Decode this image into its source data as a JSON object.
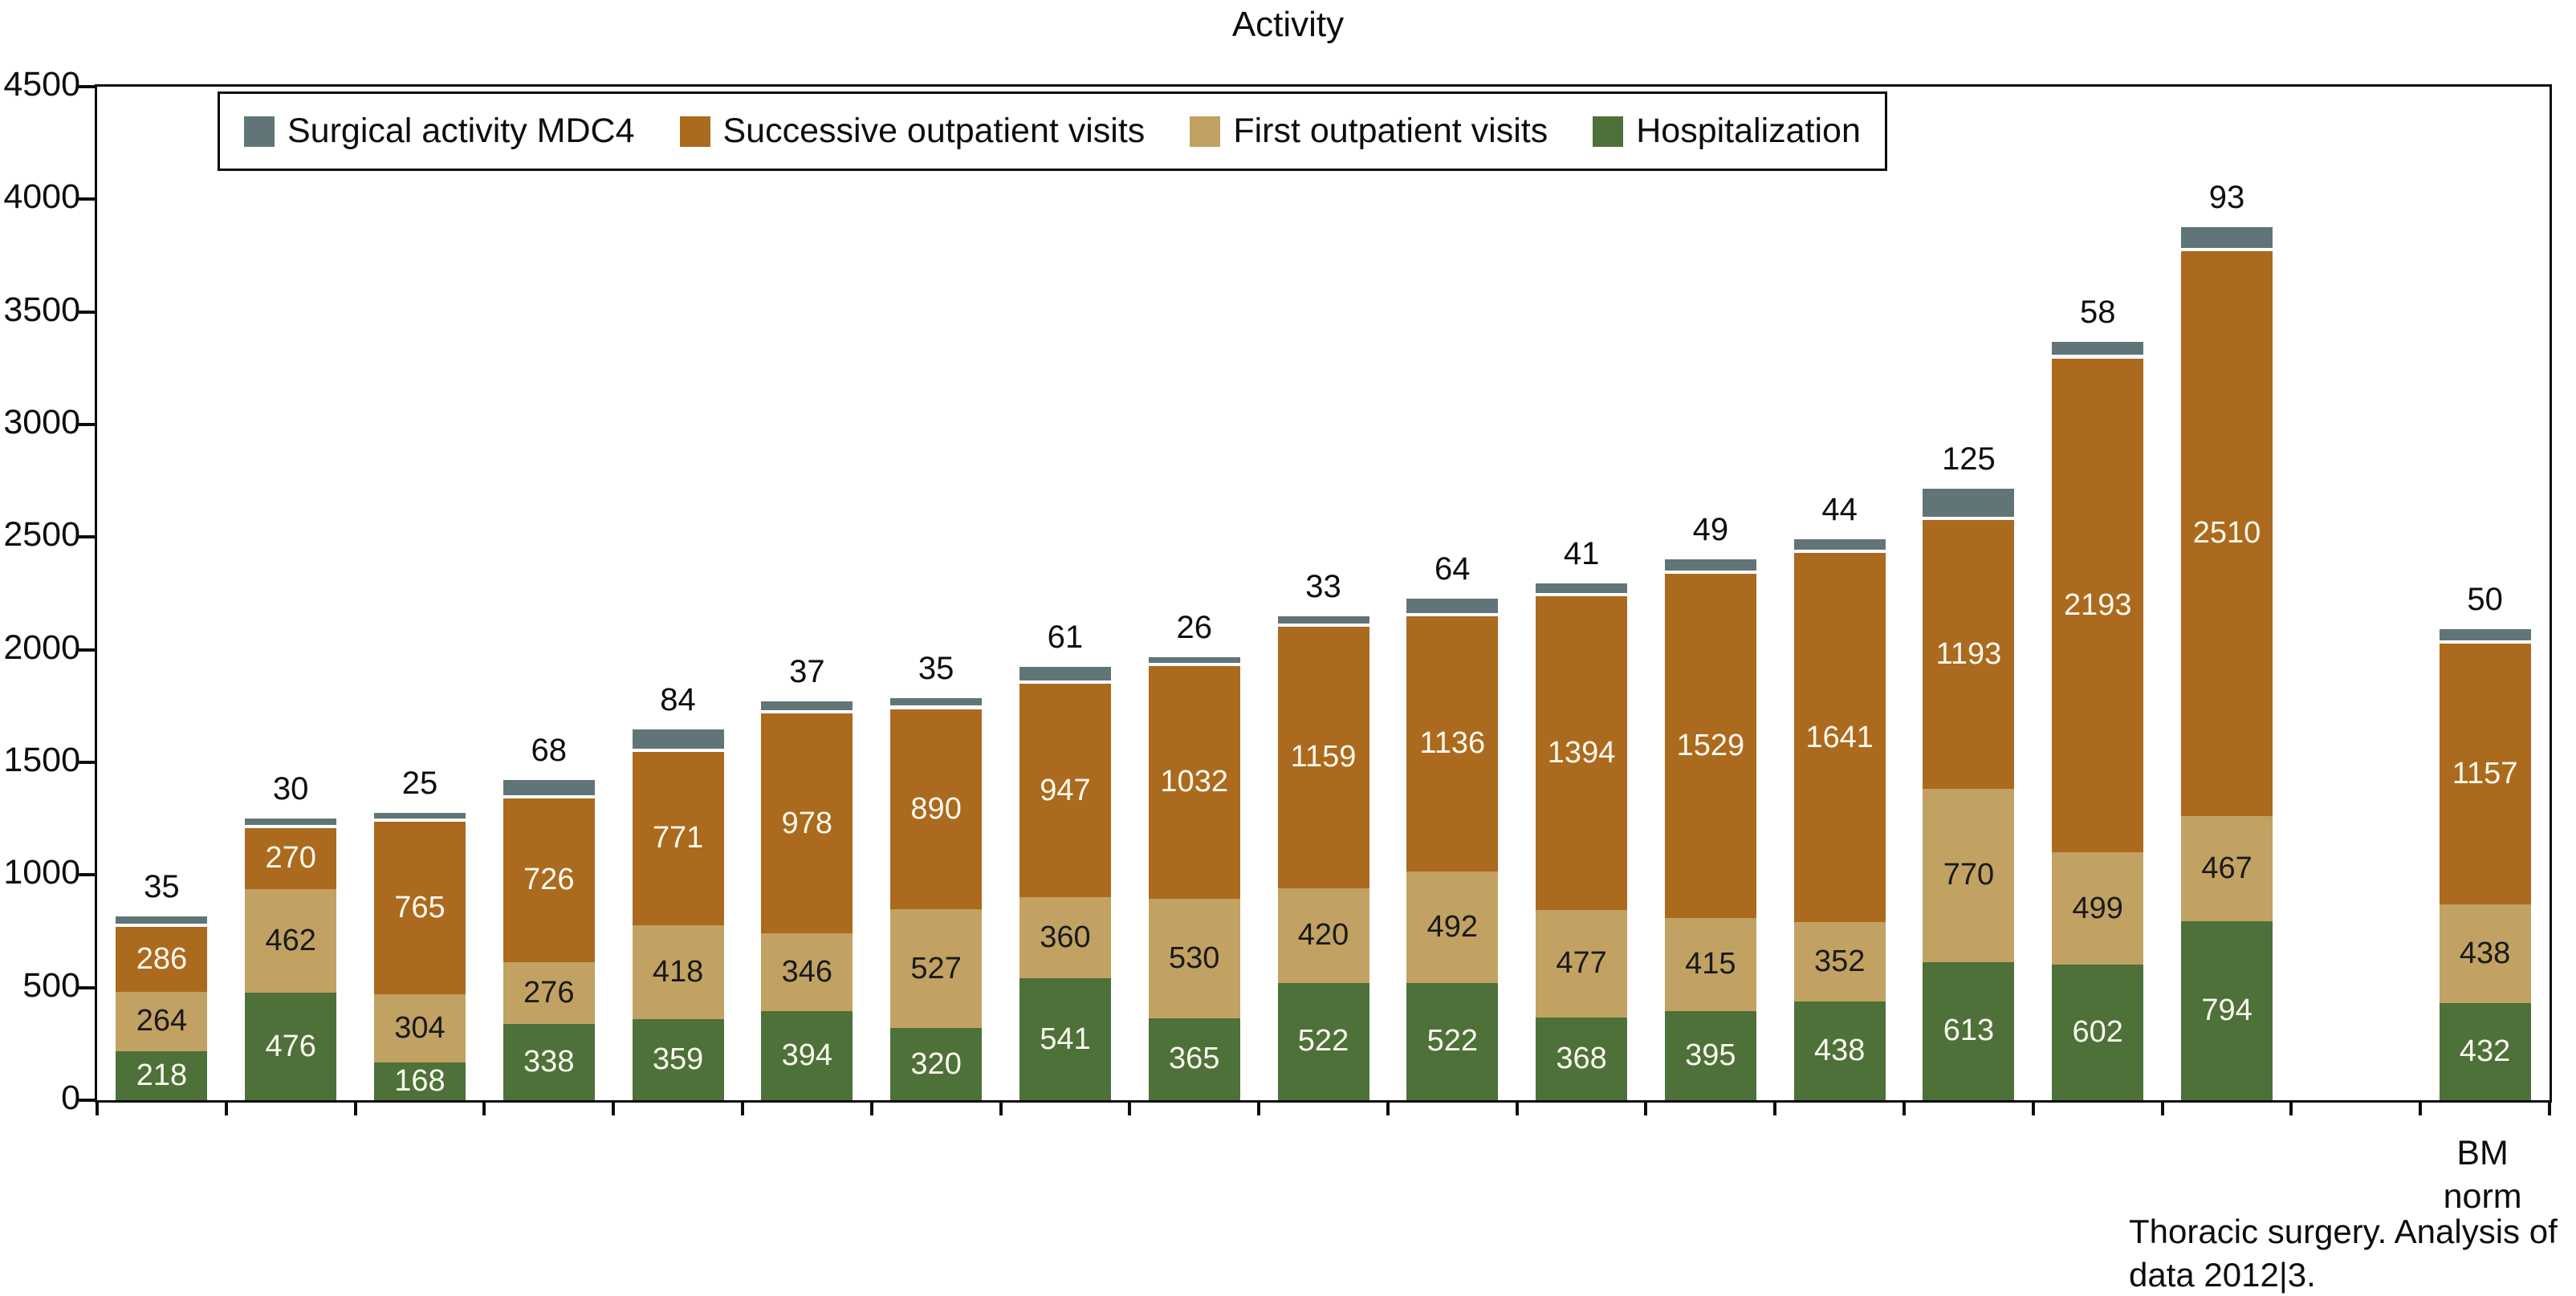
{
  "title": "Activity",
  "chart_data": {
    "type": "bar",
    "stacked": true,
    "title": "Activity",
    "xlabel": "",
    "ylabel": "",
    "ylim": [
      0,
      4500
    ],
    "y_ticks": [
      "0",
      "500",
      "1000",
      "1500",
      "2000",
      "2500",
      "3000",
      "3500",
      "4000",
      "4500"
    ],
    "grid": false,
    "legend_position": "top-inside-framed",
    "legend": [
      {
        "key": "mdc4",
        "label": "Surgical activity MDC4",
        "color": "#617579",
        "value_label_color": "#0d0d0d"
      },
      {
        "key": "successive",
        "label": "Successive outpatient visits",
        "color": "#ab6a1e",
        "value_label_color": "#fbf9ee"
      },
      {
        "key": "first",
        "label": "First outpatient visits",
        "color": "#c2a262",
        "value_label_color": "#1a1a1a"
      },
      {
        "key": "hospitalization",
        "label": "Hospitalization",
        "color": "#4e7039",
        "value_label_color": "#fbf9ee"
      }
    ],
    "series_order_bottom_to_top": [
      "hospitalization",
      "first",
      "successive",
      "mdc4"
    ],
    "slots_total": 19,
    "bars": [
      {
        "slot": 0,
        "hospitalization": 218,
        "first": 264,
        "successive": 286,
        "mdc4": 35
      },
      {
        "slot": 1,
        "hospitalization": 476,
        "first": 462,
        "successive": 270,
        "mdc4": 30
      },
      {
        "slot": 2,
        "hospitalization": 168,
        "first": 304,
        "successive": 765,
        "mdc4": 25
      },
      {
        "slot": 3,
        "hospitalization": 338,
        "first": 276,
        "successive": 726,
        "mdc4": 68
      },
      {
        "slot": 4,
        "hospitalization": 359,
        "first": 418,
        "successive": 771,
        "mdc4": 84
      },
      {
        "slot": 5,
        "hospitalization": 394,
        "first": 346,
        "successive": 978,
        "mdc4": 37
      },
      {
        "slot": 6,
        "hospitalization": 320,
        "first": 527,
        "successive": 890,
        "mdc4": 35
      },
      {
        "slot": 7,
        "hospitalization": 541,
        "first": 360,
        "successive": 947,
        "mdc4": 61
      },
      {
        "slot": 8,
        "hospitalization": 365,
        "first": 530,
        "successive": 1032,
        "mdc4": 26
      },
      {
        "slot": 9,
        "hospitalization": 522,
        "first": 420,
        "successive": 1159,
        "mdc4": 33
      },
      {
        "slot": 10,
        "hospitalization": 522,
        "first": 492,
        "successive": 1136,
        "mdc4": 64
      },
      {
        "slot": 11,
        "hospitalization": 368,
        "first": 477,
        "successive": 1394,
        "mdc4": 41
      },
      {
        "slot": 12,
        "hospitalization": 395,
        "first": 415,
        "successive": 1529,
        "mdc4": 49
      },
      {
        "slot": 13,
        "hospitalization": 438,
        "first": 352,
        "successive": 1641,
        "mdc4": 44
      },
      {
        "slot": 14,
        "hospitalization": 613,
        "first": 770,
        "successive": 1193,
        "mdc4": 125
      },
      {
        "slot": 15,
        "hospitalization": 602,
        "first": 499,
        "successive": 2193,
        "mdc4": 58
      },
      {
        "slot": 16,
        "hospitalization": 794,
        "first": 467,
        "successive": 2510,
        "mdc4": 93
      },
      {
        "slot": 18,
        "x_label": [
          "BM",
          "norm"
        ],
        "hospitalization": 432,
        "first": 438,
        "successive": 1157,
        "mdc4": 50
      }
    ]
  },
  "footnote": {
    "lines": [
      "Thoracic surgery. Analysis of",
      "data 2012|3."
    ]
  },
  "colors": {
    "axis": "#0d0d0d",
    "background": "#ffffff",
    "surgical_mdc4": "#617579",
    "successive_visits": "#ab6a1e",
    "first_visits": "#c2a262",
    "hospitalization": "#4e7039"
  }
}
